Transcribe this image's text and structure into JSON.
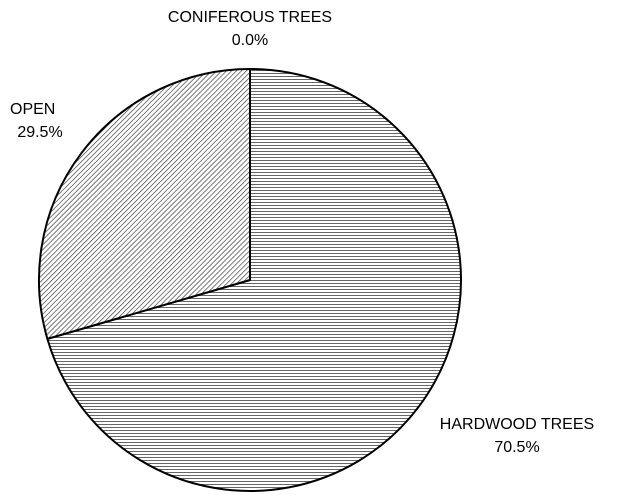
{
  "chart_data": {
    "type": "pie",
    "categories": [
      "HARDWOOD TREES",
      "OPEN",
      "CONIFEROUS TREES"
    ],
    "values": [
      70.5,
      29.5,
      0.0
    ],
    "value_labels": [
      "70.5%",
      "29.5%",
      "0.0%"
    ]
  }
}
